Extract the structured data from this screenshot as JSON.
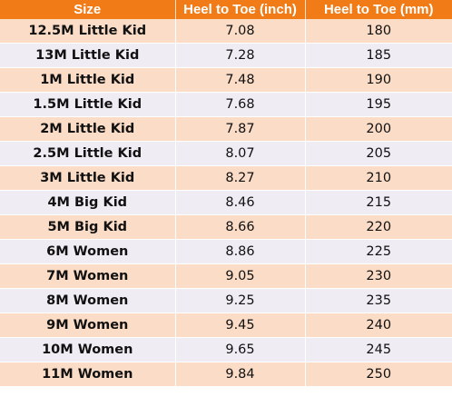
{
  "table": {
    "headers": {
      "size": "Size",
      "inch": "Heel to Toe (inch)",
      "mm": "Heel to Toe (mm)"
    },
    "rows": [
      {
        "size": "12.5M Little Kid",
        "inch": "7.08",
        "mm": "180"
      },
      {
        "size": "13M Little Kid",
        "inch": "7.28",
        "mm": "185"
      },
      {
        "size": "1M Little Kid",
        "inch": "7.48",
        "mm": "190"
      },
      {
        "size": "1.5M Little Kid",
        "inch": "7.68",
        "mm": "195"
      },
      {
        "size": "2M Little Kid",
        "inch": "7.87",
        "mm": "200"
      },
      {
        "size": "2.5M Little Kid",
        "inch": "8.07",
        "mm": "205"
      },
      {
        "size": "3M Little Kid",
        "inch": "8.27",
        "mm": "210"
      },
      {
        "size": "4M Big Kid",
        "inch": "8.46",
        "mm": "215"
      },
      {
        "size": "5M Big Kid",
        "inch": "8.66",
        "mm": "220"
      },
      {
        "size": "6M Women",
        "inch": "8.86",
        "mm": "225"
      },
      {
        "size": "7M Women",
        "inch": "9.05",
        "mm": "230"
      },
      {
        "size": "8M Women",
        "inch": "9.25",
        "mm": "235"
      },
      {
        "size": "9M Women",
        "inch": "9.45",
        "mm": "240"
      },
      {
        "size": "10M Women",
        "inch": "9.65",
        "mm": "245"
      },
      {
        "size": "11M Women",
        "inch": "9.84",
        "mm": "250"
      }
    ]
  },
  "colors": {
    "header_bg": "#f07b17",
    "header_text": "#ffffff",
    "row_odd_bg": "#fbdcc6",
    "row_even_bg": "#f0ecf4"
  }
}
